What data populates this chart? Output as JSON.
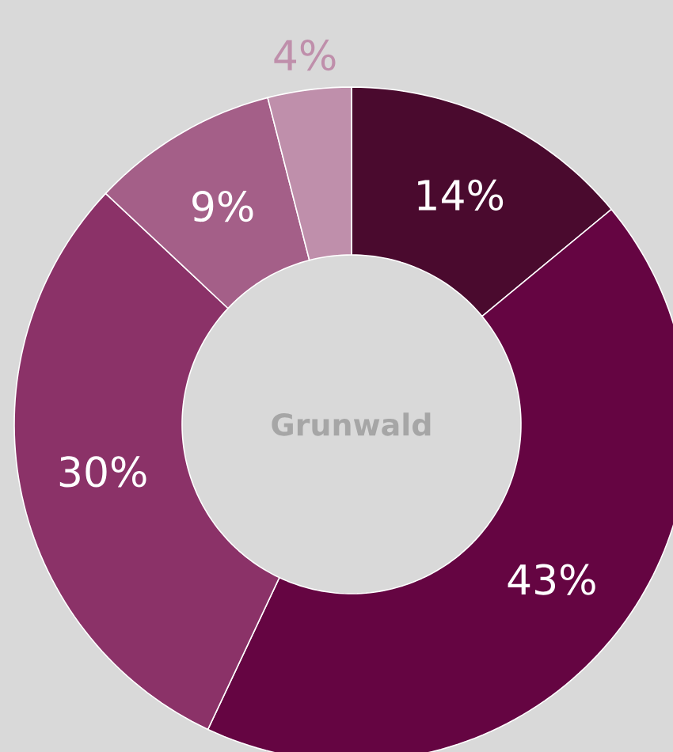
{
  "chart_data": {
    "type": "donut",
    "title": "Grunwald",
    "categories": [
      null,
      null,
      null,
      null,
      null
    ],
    "values": [
      14,
      43,
      30,
      9,
      4
    ],
    "value_labels": [
      "14%",
      "43%",
      "30%",
      "9%",
      "4%"
    ],
    "colors": [
      "#4a0a2e",
      "#650542",
      "#8b3268",
      "#a45f88",
      "#bf8fab"
    ]
  }
}
